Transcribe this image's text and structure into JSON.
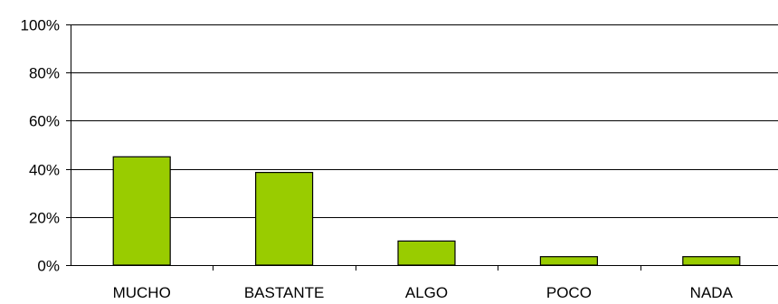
{
  "chart_data": {
    "type": "bar",
    "categories": [
      "MUCHO",
      "BASTANTE",
      "ALGO",
      "POCO",
      "NADA"
    ],
    "values": [
      45,
      38.5,
      10,
      3.5,
      3.5
    ],
    "title": "",
    "xlabel": "",
    "ylabel": "",
    "ylim": [
      0,
      100
    ],
    "y_ticks": [
      "0%",
      "20%",
      "40%",
      "60%",
      "80%",
      "100%"
    ],
    "grid": true,
    "legend": "none",
    "colors": {
      "bar_fill": "#99cc00",
      "bar_stroke": "#000000",
      "grid": "#000000",
      "axis": "#000000"
    }
  }
}
